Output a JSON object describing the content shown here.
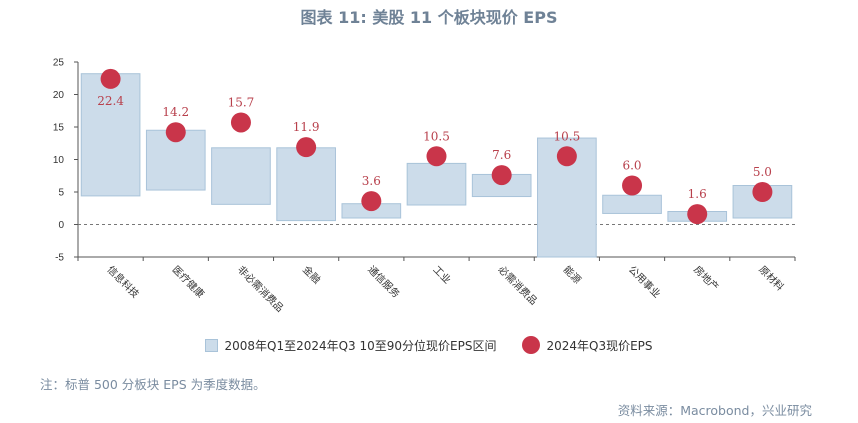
{
  "title": "图表 11: 美股 11 个板块现价 EPS",
  "legend": {
    "range_label": "2008年Q1至2024年Q3  10至90分位现价EPS区间",
    "current_label": "2024年Q3现价EPS"
  },
  "note": "注：标普 500 分板块 EPS 为季度数据。",
  "source": "资料来源：Macrobond，兴业研究",
  "colors": {
    "range_fill": "#ccdcea",
    "range_stroke": "#a9c3d9",
    "dot": "#c9354a",
    "label": "#b8404c",
    "title": "#6f8296"
  },
  "chart_data": {
    "type": "bar",
    "categories": [
      "信息科技",
      "医疗健康",
      "非必需消费品",
      "金融",
      "通信服务",
      "工业",
      "必需消费品",
      "能源",
      "公用事业",
      "房地产",
      "原材料"
    ],
    "series": [
      {
        "name": "2008年Q1至2024年Q3  10至90分位现价EPS区间",
        "type": "floating-bar",
        "low": [
          4.4,
          5.3,
          3.1,
          0.6,
          1.0,
          3.0,
          4.3,
          -5.0,
          1.7,
          0.5,
          1.0
        ],
        "high": [
          23.2,
          14.5,
          11.8,
          11.8,
          3.2,
          9.4,
          7.7,
          13.3,
          4.5,
          2.0,
          6.0
        ]
      },
      {
        "name": "2024年Q3现价EPS",
        "type": "scatter",
        "values": [
          22.4,
          14.2,
          15.7,
          11.9,
          3.6,
          10.5,
          7.6,
          10.5,
          6.0,
          1.6,
          5.0
        ]
      }
    ],
    "value_labels": [
      "22.4",
      "14.2",
      "15.7",
      "11.9",
      "3.6",
      "10.5",
      "7.6",
      "10.5",
      "6.0",
      "1.6",
      "5.0"
    ],
    "yticks": [
      "-5",
      "0",
      "5",
      "10",
      "15",
      "20",
      "25"
    ],
    "ylim": [
      -5,
      25
    ],
    "grid": false,
    "zero_line": "dashed",
    "legend_position": "bottom"
  }
}
